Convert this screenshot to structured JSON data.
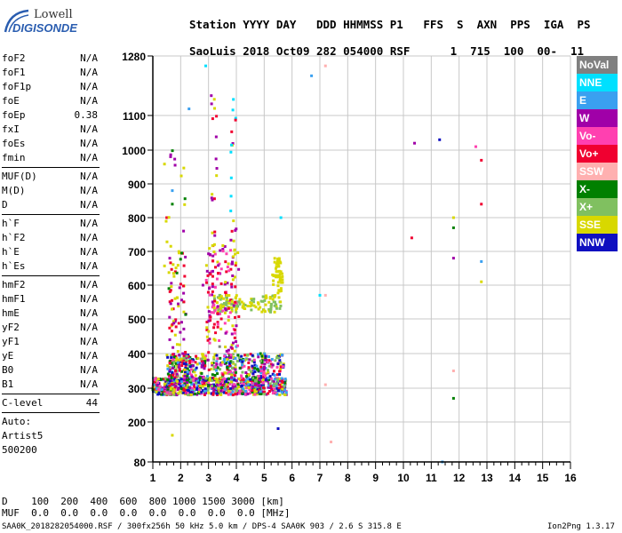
{
  "logo": {
    "line1": "Lowell",
    "line2": "DIGISONDE"
  },
  "header": {
    "labels_row": "Station YYYY DAY   DDD HHMMSS P1   FFS  S  AXN  PPS  IGA  PS",
    "station": "SaoLuis",
    "year": "2018",
    "day": "Oct09",
    "ddd": "282",
    "time": "054000",
    "p1": "RSF",
    "values_rest": "1  715  100  00-  11"
  },
  "params_group1": [
    {
      "label": "foF2",
      "value": "N/A"
    },
    {
      "label": "foF1",
      "value": "N/A"
    },
    {
      "label": "foF1p",
      "value": "N/A"
    },
    {
      "label": "foE",
      "value": "N/A"
    },
    {
      "label": "foEp",
      "value": "0.38"
    },
    {
      "label": "fxI",
      "value": "N/A"
    },
    {
      "label": "foEs",
      "value": "N/A"
    },
    {
      "label": "fmin",
      "value": "N/A"
    }
  ],
  "params_group2": [
    {
      "label": "MUF(D)",
      "value": "N/A"
    },
    {
      "label": "M(D)",
      "value": "N/A"
    },
    {
      "label": "D",
      "value": "N/A"
    }
  ],
  "params_group3": [
    {
      "label": "h`F",
      "value": "N/A"
    },
    {
      "label": "h`F2",
      "value": "N/A"
    },
    {
      "label": "h`E",
      "value": "N/A"
    },
    {
      "label": "h`Es",
      "value": "N/A"
    }
  ],
  "params_group4": [
    {
      "label": "hmF2",
      "value": "N/A"
    },
    {
      "label": "hmF1",
      "value": "N/A"
    },
    {
      "label": "hmE",
      "value": "N/A"
    },
    {
      "label": "yF2",
      "value": "N/A"
    },
    {
      "label": "yF1",
      "value": "N/A"
    },
    {
      "label": "yE",
      "value": "N/A"
    },
    {
      "label": "B0",
      "value": "N/A"
    },
    {
      "label": "B1",
      "value": "N/A"
    }
  ],
  "clevel": {
    "label": "C-level",
    "value": "44"
  },
  "auto": [
    "Auto:",
    "Artist5",
    "500200"
  ],
  "legend": [
    {
      "name": "NoVal",
      "color": "#808080"
    },
    {
      "name": "NNE",
      "color": "#00e0ff"
    },
    {
      "name": "E",
      "color": "#3aa0f0"
    },
    {
      "name": "W",
      "color": "#a000a8"
    },
    {
      "name": "Vo-",
      "color": "#ff40b0"
    },
    {
      "name": "Vo+",
      "color": "#f00030"
    },
    {
      "name": "SSW",
      "color": "#ffb0b0"
    },
    {
      "name": "X-",
      "color": "#008000"
    },
    {
      "name": "X+",
      "color": "#80c060"
    },
    {
      "name": "SSE",
      "color": "#d8d800"
    },
    {
      "name": "NNW",
      "color": "#1010c0"
    }
  ],
  "dtable": {
    "row1": "D    100  200  400  600  800 1000 1500 3000 [km]",
    "row2": "MUF  0.0  0.0  0.0  0.0  0.0  0.0  0.0  0.0 [MHz]"
  },
  "footer": {
    "left": "SAA0K_2018282054000.RSF / 300fx256h 50 kHz 5.0 km / DPS-4 SAA0K 903 / 2.6 S 315.8 E",
    "right": "Ion2Png 1.3.17"
  },
  "chart_data": {
    "type": "scatter",
    "xlabel": "",
    "ylabel": "",
    "xlim": [
      1,
      16
    ],
    "ylim": [
      80,
      1280
    ],
    "x_ticks": [
      1,
      2,
      3,
      4,
      5,
      6,
      7,
      8,
      9,
      10,
      11,
      12,
      13,
      14,
      15,
      16
    ],
    "y_ticks": [
      80,
      200,
      300,
      400,
      500,
      600,
      700,
      800,
      900,
      1000,
      1100,
      1280
    ],
    "grid": true,
    "series": [
      {
        "name": "NoVal",
        "points": [
          [
            1.6,
            360
          ],
          [
            2.1,
            300
          ],
          [
            3.4,
            420
          ],
          [
            4.2,
            380
          ],
          [
            5.3,
            320
          ]
        ]
      },
      {
        "name": "NNE",
        "points": [
          [
            2.9,
            1250
          ],
          [
            3.8,
            820
          ],
          [
            7.0,
            570
          ],
          [
            5.6,
            800
          ]
        ]
      },
      {
        "name": "E",
        "points": [
          [
            1.7,
            880
          ],
          [
            2.3,
            1120
          ],
          [
            6.7,
            1220
          ],
          [
            12.8,
            670
          ],
          [
            3.4,
            520
          ],
          [
            4.0,
            420
          ],
          [
            11.4,
            80
          ]
        ]
      },
      {
        "name": "W",
        "points": [
          [
            2.4,
            330
          ],
          [
            3.3,
            360
          ],
          [
            3.9,
            310
          ],
          [
            4.6,
            350
          ],
          [
            2.8,
            600
          ],
          [
            3.1,
            1160
          ],
          [
            10.4,
            1020
          ],
          [
            11.8,
            680
          ]
        ]
      },
      {
        "name": "Vo-",
        "points": [
          [
            3.1,
            640
          ],
          [
            4.2,
            360
          ],
          [
            12.6,
            1010
          ],
          [
            2.0,
            300
          ],
          [
            3.6,
            300
          ]
        ]
      },
      {
        "name": "Vo+",
        "points": [
          [
            1.5,
            800
          ],
          [
            2.8,
            310
          ],
          [
            4.4,
            340
          ],
          [
            5.0,
            300
          ],
          [
            12.8,
            970
          ],
          [
            12.8,
            840
          ],
          [
            10.3,
            740
          ]
        ]
      },
      {
        "name": "SSW",
        "points": [
          [
            7.2,
            570
          ],
          [
            7.4,
            140
          ],
          [
            7.2,
            310
          ],
          [
            11.8,
            350
          ],
          [
            7.2,
            1250
          ]
        ]
      },
      {
        "name": "X-",
        "points": [
          [
            11.8,
            770
          ],
          [
            11.8,
            270
          ],
          [
            1.7,
            840
          ]
        ]
      },
      {
        "name": "X+",
        "points": [
          [
            4.4,
            330
          ],
          [
            5.0,
            360
          ],
          [
            5.4,
            380
          ],
          [
            3.4,
            570
          ],
          [
            2.1,
            550
          ]
        ]
      },
      {
        "name": "SSE",
        "points": [
          [
            1.8,
            560
          ],
          [
            3.5,
            540
          ],
          [
            4.2,
            550
          ],
          [
            5.6,
            640
          ],
          [
            5.0,
            400
          ],
          [
            5.7,
            370
          ],
          [
            11.8,
            800
          ],
          [
            12.8,
            610
          ],
          [
            1.7,
            160
          ]
        ]
      },
      {
        "name": "NNW",
        "points": [
          [
            11.3,
            1030
          ],
          [
            5.5,
            180
          ],
          [
            3.0,
            310
          ],
          [
            4.0,
            300
          ]
        ]
      }
    ]
  }
}
